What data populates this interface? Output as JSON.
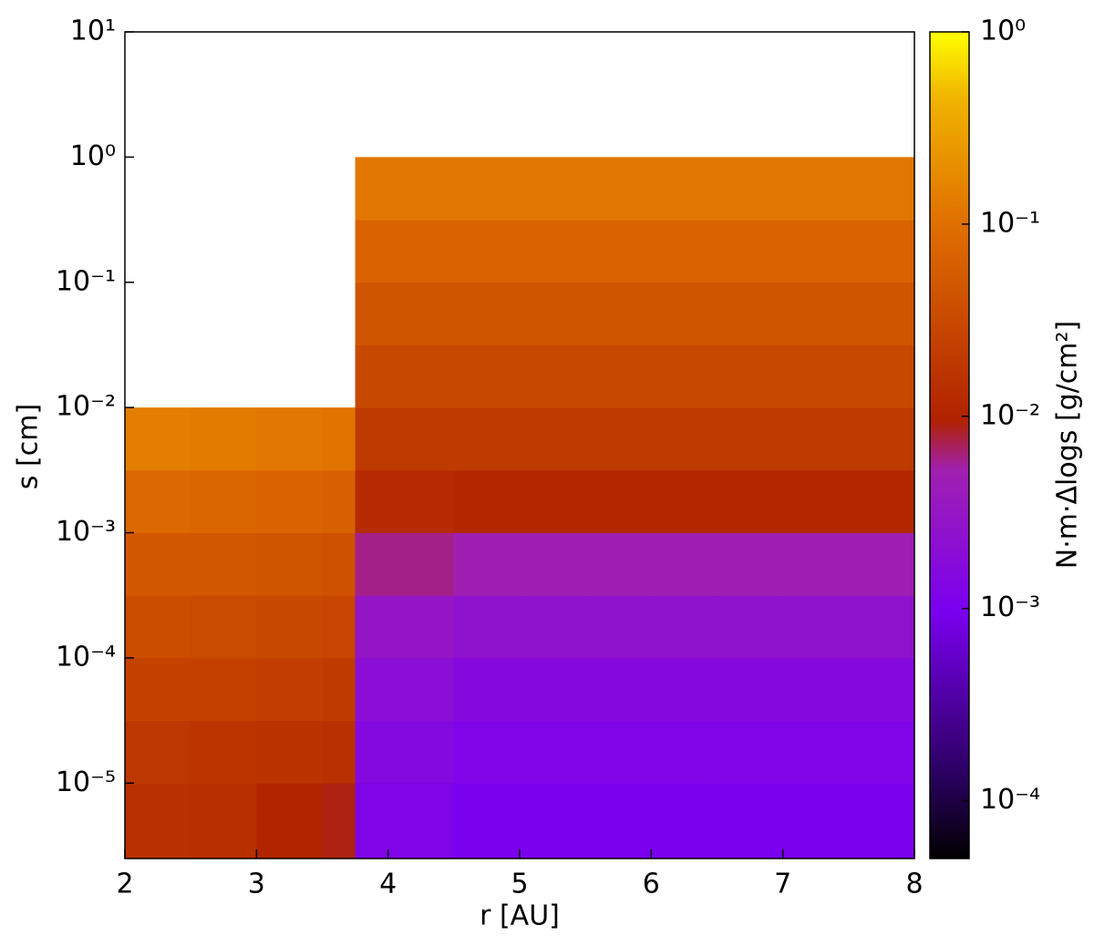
{
  "chart_data": {
    "type": "heatmap",
    "xlabel": "r [AU]",
    "ylabel": "s [cm]",
    "colorbar_label": "N·m·Δlogs [g/cm²]",
    "xlim": [
      2,
      8
    ],
    "xticks": [
      2,
      3,
      4,
      5,
      6,
      7,
      8
    ],
    "ylim": [
      2.5e-06,
      10
    ],
    "yscale": "log",
    "yticks": [
      {
        "value": 1e-05,
        "label": "10⁻⁵"
      },
      {
        "value": 0.0001,
        "label": "10⁻⁴"
      },
      {
        "value": 0.001,
        "label": "10⁻³"
      },
      {
        "value": 0.01,
        "label": "10⁻²"
      },
      {
        "value": 0.1,
        "label": "10⁻¹"
      },
      {
        "value": 1,
        "label": "10⁰"
      },
      {
        "value": 10,
        "label": "10¹"
      }
    ],
    "clim": [
      5e-05,
      1
    ],
    "cscale": "log",
    "cticks": [
      {
        "value": 0.0001,
        "label": "10⁻⁴"
      },
      {
        "value": 0.001,
        "label": "10⁻³"
      },
      {
        "value": 0.01,
        "label": "10⁻²"
      },
      {
        "value": 0.1,
        "label": "10⁻¹"
      },
      {
        "value": 1,
        "label": "10⁰"
      }
    ],
    "colormap": [
      [
        0,
        "#000000"
      ],
      [
        0.1,
        "#2a0060"
      ],
      [
        0.3,
        "#7a00f0"
      ],
      [
        0.47,
        "#a020b0"
      ],
      [
        0.53,
        "#b02200"
      ],
      [
        0.77,
        "#e07000"
      ],
      [
        0.92,
        "#f0b400"
      ],
      [
        1,
        "#ffff00"
      ]
    ],
    "x_edges": [
      2,
      2.5,
      3,
      3.5,
      3.75,
      4.5,
      5,
      5.5,
      6,
      6.5,
      7,
      7.5,
      8
    ],
    "y_edges": [
      2.5e-06,
      1e-05,
      3.16e-05,
      0.0001,
      0.000316,
      0.001,
      0.00316,
      0.01,
      0.0316,
      0.1,
      0.316,
      1
    ],
    "z": [
      [
        0.015,
        0.014,
        0.01,
        0.009,
        0.0012,
        0.001,
        0.001,
        0.001,
        0.001,
        0.001,
        0.001,
        0.001
      ],
      [
        0.018,
        0.017,
        0.016,
        0.015,
        0.0015,
        0.0012,
        0.0012,
        0.0012,
        0.0012,
        0.0012,
        0.0012,
        0.0012
      ],
      [
        0.025,
        0.024,
        0.022,
        0.02,
        0.002,
        0.0016,
        0.0016,
        0.0016,
        0.0016,
        0.0016,
        0.0016,
        0.0016
      ],
      [
        0.035,
        0.033,
        0.03,
        0.028,
        0.003,
        0.0025,
        0.0025,
        0.0025,
        0.0025,
        0.0025,
        0.0025,
        0.0025
      ],
      [
        0.05,
        0.048,
        0.045,
        0.04,
        0.006,
        0.005,
        0.005,
        0.005,
        0.005,
        0.005,
        0.005,
        0.005
      ],
      [
        0.08,
        0.075,
        0.07,
        0.065,
        0.012,
        0.011,
        0.011,
        0.011,
        0.011,
        0.011,
        0.011,
        0.011
      ],
      [
        0.14,
        0.13,
        0.12,
        0.11,
        0.02,
        0.02,
        0.02,
        0.02,
        0.02,
        0.02,
        0.02,
        0.02
      ],
      [
        null,
        null,
        null,
        null,
        0.03,
        0.03,
        0.03,
        0.03,
        0.03,
        0.03,
        0.03,
        0.03
      ],
      [
        null,
        null,
        null,
        null,
        0.045,
        0.045,
        0.045,
        0.045,
        0.045,
        0.045,
        0.045,
        0.045
      ],
      [
        null,
        null,
        null,
        null,
        0.07,
        0.07,
        0.07,
        0.07,
        0.07,
        0.07,
        0.07,
        0.07
      ],
      [
        null,
        null,
        null,
        null,
        0.12,
        0.12,
        0.12,
        0.12,
        0.12,
        0.12,
        0.12,
        0.12
      ]
    ]
  }
}
